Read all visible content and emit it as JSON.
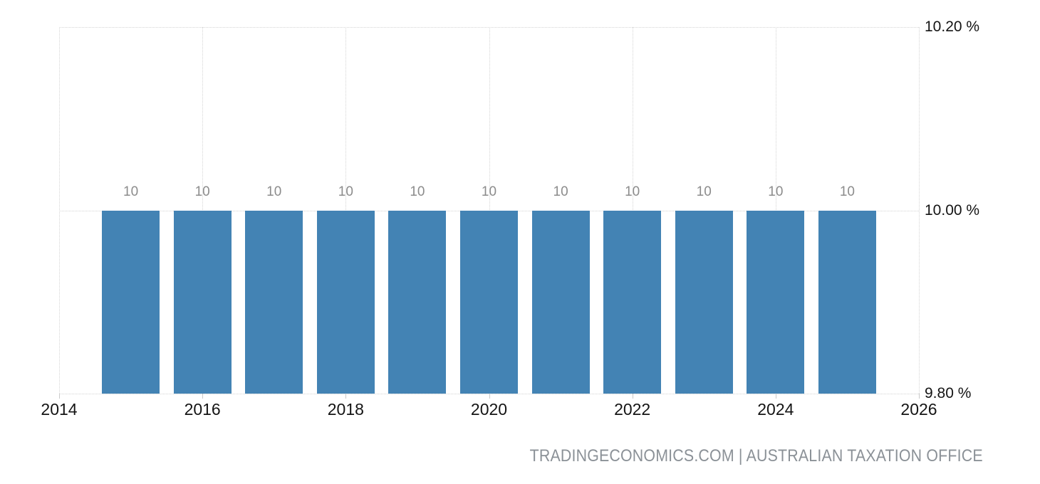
{
  "chart_data": {
    "type": "bar",
    "title": "",
    "xlabel": "",
    "ylabel": "",
    "unit": "%",
    "categories": [
      2015,
      2016,
      2017,
      2018,
      2019,
      2020,
      2021,
      2022,
      2023,
      2024,
      2025
    ],
    "values": [
      10,
      10,
      10,
      10,
      10,
      10,
      10,
      10,
      10,
      10,
      10
    ],
    "bar_value_labels": [
      "10",
      "10",
      "10",
      "10",
      "10",
      "10",
      "10",
      "10",
      "10",
      "10",
      "10"
    ],
    "xlim": [
      2014,
      2026
    ],
    "ylim": [
      9.8,
      10.2
    ],
    "x_axis": {
      "values": [
        2014,
        2016,
        2018,
        2020,
        2022,
        2024,
        2026
      ],
      "labels": [
        "2014",
        "2016",
        "2018",
        "2020",
        "2022",
        "2024",
        "2026"
      ]
    },
    "y_axis": {
      "values": [
        10.2,
        10.0,
        9.8
      ],
      "labels": [
        "10.20 %",
        "10.00 %",
        "9.80 %"
      ],
      "position": "right"
    },
    "grid": "dotted",
    "legend": "none",
    "colors": {
      "bar": "#4383b4",
      "grid": "#d4d4d4",
      "tick": "#c9c9c9",
      "axis_text": "#141414",
      "bar_label": "#8c8c8c",
      "footer_text": "#8b9197"
    }
  },
  "footer": {
    "attribution": "TRADINGECONOMICS.COM | AUSTRALIAN TAXATION OFFICE"
  }
}
